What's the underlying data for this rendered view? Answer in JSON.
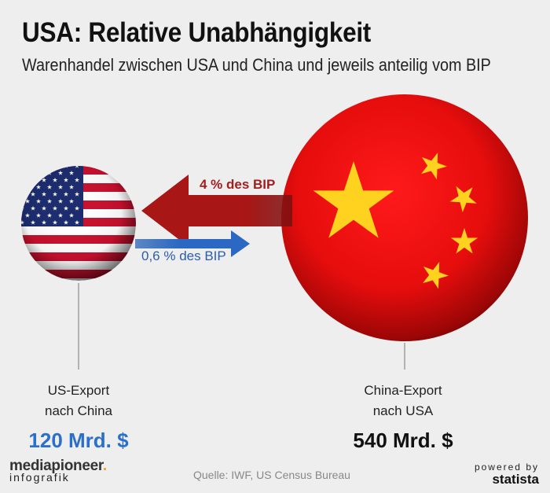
{
  "header": {
    "title": "USA: Relative Unabhängigkeit",
    "subtitle": "Warenhandel zwischen USA und China und jeweils anteilig vom BIP"
  },
  "nodes": {
    "us": {
      "flag": "us-flag-icon",
      "label_line1": "US-Export",
      "label_line2": "nach China",
      "value": "120 Mrd. $",
      "color": "#2a6fc9"
    },
    "china": {
      "flag": "china-flag-icon",
      "label_line1": "China-Export",
      "label_line2": "nach USA",
      "value": "540 Mrd. $",
      "color": "#111111"
    }
  },
  "edges": [
    {
      "from": "china",
      "to": "us",
      "label": "4 % des BIP",
      "color": "#a01f1f"
    },
    {
      "from": "us",
      "to": "china",
      "label": "0,6 % des BIP",
      "color": "#2a5fae"
    }
  ],
  "footer": {
    "brand_left": "mediapi",
    "brand_o": "o",
    "brand_right": "neer",
    "brand_dot": ".",
    "brand_sub": "infografik",
    "source": "Quelle: IWF, US Census Bureau",
    "powered_by": "powered by",
    "statista": "statista"
  }
}
